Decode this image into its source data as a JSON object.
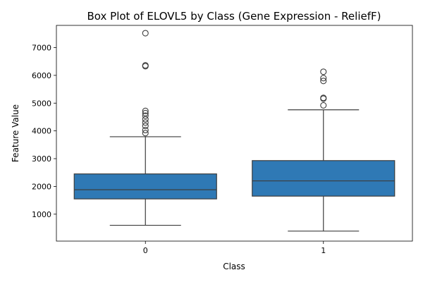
{
  "chart_data": {
    "type": "box",
    "title": "Box Plot of ELOVL5 by Class (Gene Expression - ReliefF)",
    "xlabel": "Class",
    "ylabel": "Feature Value",
    "ylim": [
      30,
      7800
    ],
    "yticks": [
      1000,
      2000,
      3000,
      4000,
      5000,
      6000,
      7000
    ],
    "ytick_labels": [
      "1000",
      "2000",
      "3000",
      "4000",
      "5000",
      "6000",
      "7000"
    ],
    "categories": [
      "0",
      "1"
    ],
    "box_color": "#2f79b5",
    "line_color": "#3d3d3d",
    "boxes": [
      {
        "category": "0",
        "whisker_low": 600,
        "q1": 1550,
        "median": 1880,
        "q3": 2450,
        "whisker_high": 3790,
        "outliers": [
          3920,
          4030,
          4180,
          4300,
          4420,
          4550,
          4640,
          4720,
          6330,
          6360,
          7520
        ]
      },
      {
        "category": "1",
        "whisker_low": 390,
        "q1": 1650,
        "median": 2200,
        "q3": 2930,
        "whisker_high": 4760,
        "outliers": [
          4920,
          5160,
          5190,
          5800,
          5900,
          6130
        ]
      }
    ]
  }
}
